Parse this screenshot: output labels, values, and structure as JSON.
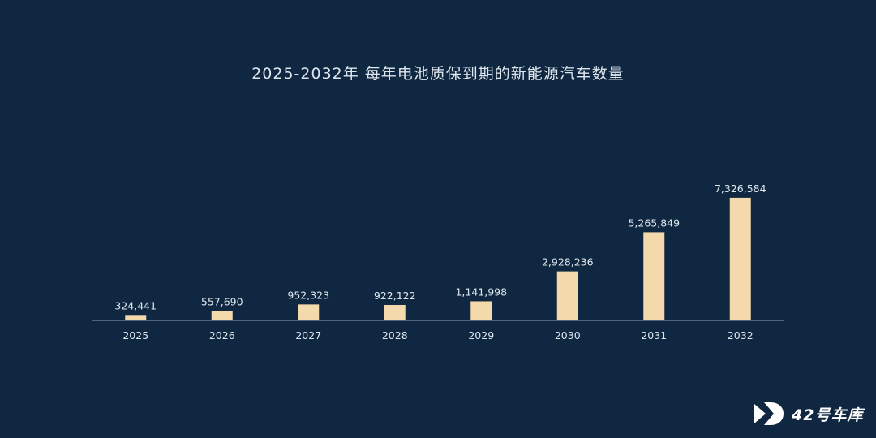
{
  "chart_data": {
    "type": "bar",
    "title": "2025-2032年 每年电池质保到期的新能源汽车数量",
    "categories": [
      "2025",
      "2026",
      "2027",
      "2028",
      "2029",
      "2030",
      "2031",
      "2032"
    ],
    "values": [
      324441,
      557690,
      952323,
      922122,
      1141998,
      2928236,
      5265849,
      7326584
    ],
    "value_labels": [
      "324,441",
      "557,690",
      "952,323",
      "922,122",
      "1,141,998",
      "2,928,236",
      "5,265,849",
      "7,326,584"
    ],
    "ylim": [
      0,
      8000000
    ],
    "grid": false,
    "legend": "none",
    "colors": {
      "bar": "#f3d9ab",
      "background": "#0f2740",
      "axis": "#8ea2b8",
      "text": "#dfe6ee"
    }
  },
  "brand": {
    "name": "42号车库",
    "icon": "play-logo-icon"
  }
}
